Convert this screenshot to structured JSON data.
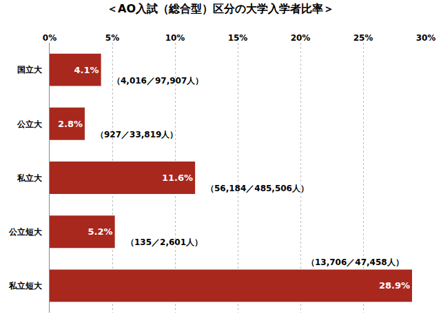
{
  "chart_data": {
    "type": "bar",
    "orientation": "horizontal",
    "title": "＜AO入試（総合型）区分の大学入学者比率＞",
    "categories": [
      "国立大",
      "公立大",
      "私立大",
      "公立短大",
      "私立短大"
    ],
    "values": [
      4.1,
      2.8,
      11.6,
      5.2,
      28.9
    ],
    "value_labels": [
      "4.1%",
      "2.8%",
      "11.6%",
      "5.2%",
      "28.9%"
    ],
    "data_labels": true,
    "color": "#a8281e",
    "xlim": [
      0,
      30
    ],
    "xticks": [
      {
        "value": 0,
        "label": "0%"
      },
      {
        "value": 5,
        "label": "5%"
      },
      {
        "value": 10,
        "label": "10%"
      },
      {
        "value": 15,
        "label": "15%"
      },
      {
        "value": 20,
        "label": "20%"
      },
      {
        "value": 25,
        "label": "25%"
      },
      {
        "value": 30,
        "label": "30%"
      }
    ],
    "grid": true,
    "annotations": [
      {
        "category": "国立大",
        "text": "（4,016／97,907人）"
      },
      {
        "category": "公立大",
        "text": "（927／33,819人）"
      },
      {
        "category": "私立大",
        "text": "（56,184／485,506人）"
      },
      {
        "category": "公立短大",
        "text": "（135／2,601人）"
      },
      {
        "category": "私立短大",
        "text": "（13,706／47,458人）"
      }
    ]
  }
}
